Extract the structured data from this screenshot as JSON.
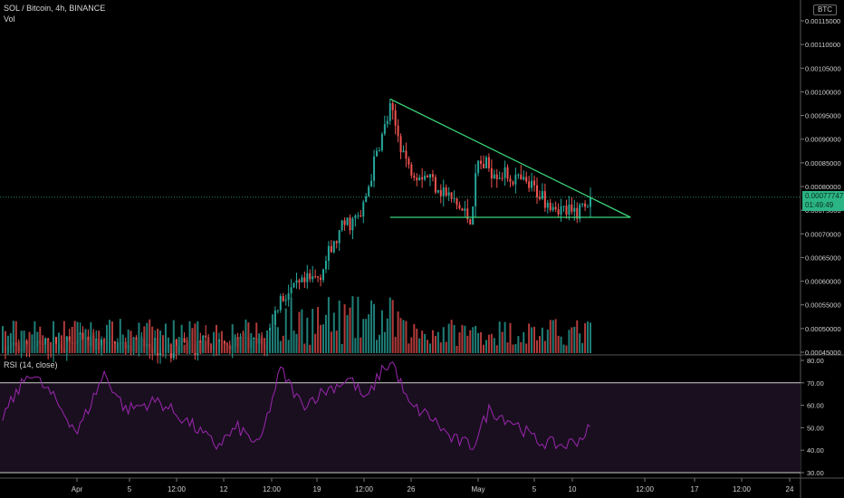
{
  "header": {
    "symbol_line": "SOL / Bitcoin, 4h, BINANCE",
    "vol_label": "Vol",
    "rsi_label": "RSI (14, close)",
    "currency_badge": "BTC"
  },
  "price_tag": {
    "price": "0.00077747",
    "countdown": "01:49:49",
    "color": "#2bb585"
  },
  "colors": {
    "up": "#26a69a",
    "down": "#ef5350",
    "vol_up": "#1f7f78",
    "vol_down": "#b23b3b",
    "pattern_lines": "#3ad67a",
    "rsi_line": "#9c27b0",
    "rsi_band": "#1a0f1f"
  },
  "chart_data": {
    "type": "candlestick",
    "series_name": "SOL / Bitcoin",
    "price_axis": {
      "range": [
        0.00045,
        0.00115
      ],
      "ticks": [
        "0.00045000",
        "0.00050000",
        "0.00055000",
        "0.00060000",
        "0.00065000",
        "0.00070000",
        "0.00075000",
        "0.00080000",
        "0.00085000",
        "0.00090000",
        "0.00095000",
        "0.00100000",
        "0.00105000",
        "0.00110000",
        "0.00115000"
      ]
    },
    "time_axis": {
      "ticks": [
        "Apr",
        "5",
        "12:00",
        "12",
        "12:00",
        "19",
        "12:00",
        "26",
        "May",
        "5",
        "10",
        "12:00",
        "17",
        "12:00",
        "24"
      ]
    },
    "waypoints": [
      {
        "i": 0,
        "price": 0.000455
      },
      {
        "i": 30,
        "price": 0.00047
      },
      {
        "i": 60,
        "price": 0.00046
      },
      {
        "i": 72,
        "price": 0.000462
      },
      {
        "i": 86,
        "price": 0.00047
      },
      {
        "i": 98,
        "price": 0.000465
      },
      {
        "i": 104,
        "price": 0.000565
      },
      {
        "i": 118,
        "price": 0.00061
      },
      {
        "i": 128,
        "price": 0.00072
      },
      {
        "i": 134,
        "price": 0.000735
      },
      {
        "i": 140,
        "price": 0.00087
      },
      {
        "i": 145,
        "price": 0.00096
      },
      {
        "i": 152,
        "price": 0.00084
      },
      {
        "i": 160,
        "price": 0.00082
      },
      {
        "i": 170,
        "price": 0.00076
      },
      {
        "i": 175,
        "price": 0.00073
      },
      {
        "i": 178,
        "price": 0.00085
      },
      {
        "i": 190,
        "price": 0.00082
      },
      {
        "i": 200,
        "price": 0.00079
      },
      {
        "i": 208,
        "price": 0.000755
      },
      {
        "i": 213,
        "price": 0.00074
      },
      {
        "i": 220,
        "price": 0.000775
      }
    ],
    "pattern": {
      "type": "descending-triangle",
      "upper": {
        "start_price": 0.000985,
        "end_price": 0.000735
      },
      "support": {
        "price": 0.000735
      }
    },
    "last_price": 0.00077747,
    "rsi": {
      "range": [
        30,
        80
      ],
      "overbought": 70,
      "oversold": 30,
      "ticks": [
        "30.00",
        "40.00",
        "50.00",
        "60.00",
        "70.00",
        "80.00"
      ],
      "waypoints": [
        {
          "i": 0,
          "v": 55
        },
        {
          "i": 10,
          "v": 75
        },
        {
          "i": 18,
          "v": 65
        },
        {
          "i": 28,
          "v": 48
        },
        {
          "i": 38,
          "v": 74
        },
        {
          "i": 46,
          "v": 58
        },
        {
          "i": 58,
          "v": 62
        },
        {
          "i": 70,
          "v": 52
        },
        {
          "i": 80,
          "v": 42
        },
        {
          "i": 88,
          "v": 50
        },
        {
          "i": 96,
          "v": 42
        },
        {
          "i": 104,
          "v": 76
        },
        {
          "i": 112,
          "v": 60
        },
        {
          "i": 120,
          "v": 66
        },
        {
          "i": 130,
          "v": 72
        },
        {
          "i": 136,
          "v": 62
        },
        {
          "i": 142,
          "v": 76
        },
        {
          "i": 146,
          "v": 79
        },
        {
          "i": 152,
          "v": 60
        },
        {
          "i": 160,
          "v": 55
        },
        {
          "i": 168,
          "v": 45
        },
        {
          "i": 176,
          "v": 42
        },
        {
          "i": 182,
          "v": 58
        },
        {
          "i": 192,
          "v": 52
        },
        {
          "i": 200,
          "v": 44
        },
        {
          "i": 210,
          "v": 42
        },
        {
          "i": 216,
          "v": 45
        },
        {
          "i": 220,
          "v": 50
        }
      ]
    }
  }
}
